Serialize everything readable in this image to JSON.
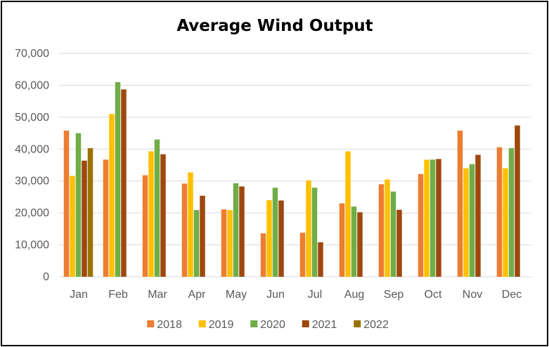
{
  "chart_data": {
    "type": "bar",
    "title": "Average Wind Output",
    "xlabel": "",
    "ylabel": "",
    "ylim": [
      0,
      70000
    ],
    "yticks": [
      0,
      10000,
      20000,
      30000,
      40000,
      50000,
      60000,
      70000
    ],
    "ytick_labels": [
      "0",
      "10,000",
      "20,000",
      "30,000",
      "40,000",
      "50,000",
      "60,000",
      "70,000"
    ],
    "grid": true,
    "legend_position": "bottom",
    "categories": [
      "Jan",
      "Feb",
      "Mar",
      "Apr",
      "May",
      "Jun",
      "Jul",
      "Aug",
      "Sep",
      "Oct",
      "Nov",
      "Dec"
    ],
    "series": [
      {
        "name": "2018",
        "color": "#ED7D31",
        "values": [
          45800,
          36700,
          31800,
          29200,
          21100,
          13600,
          13800,
          23000,
          29000,
          32200,
          45800,
          40600
        ]
      },
      {
        "name": "2019",
        "color": "#FFC000",
        "values": [
          31600,
          51000,
          39300,
          32700,
          20900,
          24000,
          30200,
          39300,
          30500,
          36700,
          34000,
          34000
        ]
      },
      {
        "name": "2020",
        "color": "#70AD47",
        "values": [
          45000,
          61000,
          43000,
          20900,
          29300,
          27900,
          27900,
          22000,
          26700,
          36700,
          35300,
          40300
        ]
      },
      {
        "name": "2021",
        "color": "#9E480E",
        "values": [
          36400,
          58700,
          38400,
          25400,
          28300,
          23900,
          10800,
          20200,
          21000,
          36900,
          38200,
          47400
        ]
      },
      {
        "name": "2022",
        "color": "#997300",
        "values": [
          40300,
          null,
          null,
          null,
          null,
          null,
          null,
          null,
          null,
          null,
          null,
          null
        ]
      }
    ]
  }
}
